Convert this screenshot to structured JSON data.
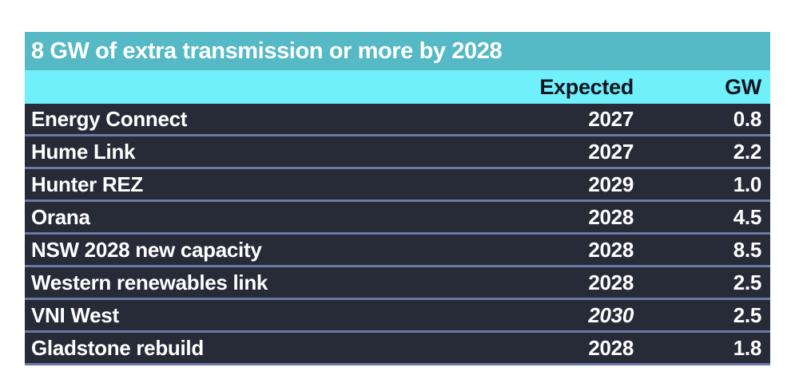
{
  "title": "8 GW of extra transmission or more by 2028",
  "columns": {
    "name": "",
    "expected": "Expected",
    "gw": "GW"
  },
  "rows": [
    {
      "name": "Energy Connect",
      "expected": "2027",
      "gw": "0.8",
      "expected_italic": false
    },
    {
      "name": "Hume Link",
      "expected": "2027",
      "gw": "2.2",
      "expected_italic": false
    },
    {
      "name": "Hunter REZ",
      "expected": "2029",
      "gw": "1.0",
      "expected_italic": false
    },
    {
      "name": "Orana",
      "expected": "2028",
      "gw": "4.5",
      "expected_italic": false
    },
    {
      "name": "NSW 2028 new capacity",
      "expected": "2028",
      "gw": "8.5",
      "expected_italic": false
    },
    {
      "name": "Western renewables link",
      "expected": "2028",
      "gw": "2.5",
      "expected_italic": false
    },
    {
      "name": "VNI West",
      "expected": "2030",
      "gw": "2.5",
      "expected_italic": true
    },
    {
      "name": "Gladstone rebuild",
      "expected": "2028",
      "gw": "1.8",
      "expected_italic": false
    }
  ],
  "colors": {
    "teal": "#55b9c6",
    "cyan": "#6ff0fb",
    "row_bg": "#272b37",
    "separator": "#6b79a3",
    "header_text": "#10151f",
    "row_text": "#ffffff",
    "page_bg": "#ffffff"
  },
  "chart_data": {
    "type": "table",
    "title": "8 GW of extra transmission or more by 2028",
    "columns": [
      "",
      "Expected",
      "GW"
    ],
    "rows": [
      [
        "Energy Connect",
        "2027",
        0.8
      ],
      [
        "Hume Link",
        "2027",
        2.2
      ],
      [
        "Hunter REZ",
        "2029",
        1.0
      ],
      [
        "Orana",
        "2028",
        4.5
      ],
      [
        "NSW 2028 new capacity",
        "2028",
        8.5
      ],
      [
        "Western renewables link",
        "2028",
        2.5
      ],
      [
        "VNI West",
        "2030",
        2.5
      ],
      [
        "Gladstone rebuild",
        "2028",
        1.8
      ]
    ]
  }
}
